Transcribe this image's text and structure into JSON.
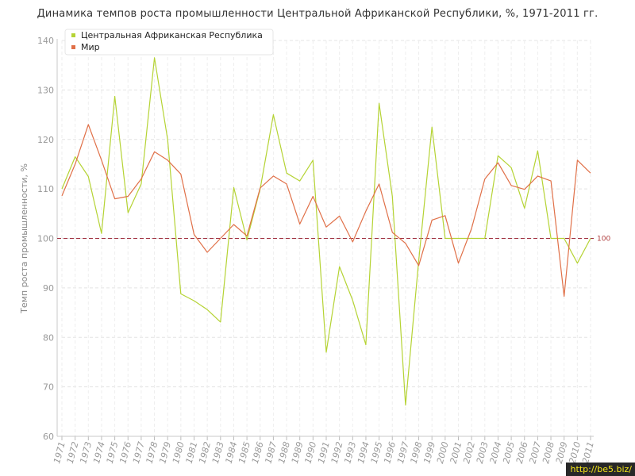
{
  "chart_data": {
    "type": "line",
    "title": "Динамика темпов роста промышленности Центральной Африканской Республики, %, 1971-2011 гг.",
    "ylabel": "Темп роста промышленности, %",
    "xlabel": "",
    "ylim": [
      60,
      140
    ],
    "yticks": [
      60,
      70,
      80,
      90,
      100,
      110,
      120,
      130,
      140
    ],
    "grid": true,
    "legend": "top-left",
    "x": [
      1971,
      1972,
      1973,
      1974,
      1975,
      1976,
      1977,
      1978,
      1979,
      1980,
      1981,
      1982,
      1983,
      1984,
      1985,
      1986,
      1987,
      1988,
      1989,
      1990,
      1991,
      1992,
      1993,
      1994,
      1995,
      1996,
      1997,
      1998,
      1999,
      2000,
      2001,
      2002,
      2003,
      2004,
      2005,
      2006,
      2007,
      2008,
      2009,
      2010,
      2011
    ],
    "series": [
      {
        "name": "Центральная Африканская Республика",
        "color": "#b5d334",
        "values": [
          110.0,
          116.5,
          112.5,
          101.0,
          128.7,
          105.2,
          111.0,
          136.5,
          120.0,
          88.8,
          87.4,
          85.6,
          83.1,
          110.3,
          99.7,
          110.0,
          125.0,
          113.2,
          111.6,
          115.8,
          77.0,
          94.3,
          87.5,
          78.5,
          127.3,
          108.5,
          66.3,
          95.5,
          122.5,
          100.0,
          100.0,
          100.0,
          100.0,
          116.7,
          114.3,
          106.1,
          117.7,
          100.0,
          100.0,
          95.0,
          100.0
        ]
      },
      {
        "name": "Мир",
        "color": "#e07048",
        "values": [
          108.6,
          115.0,
          123.0,
          115.8,
          108.0,
          108.5,
          112.0,
          117.5,
          115.8,
          113.0,
          100.8,
          97.2,
          100.0,
          102.8,
          100.5,
          110.2,
          112.6,
          111.0,
          102.9,
          108.5,
          102.3,
          104.5,
          99.3,
          105.5,
          111.0,
          101.2,
          99.0,
          94.5,
          103.7,
          104.6,
          95.0,
          102.0,
          112.0,
          115.3,
          110.7,
          109.9,
          112.6,
          111.6,
          88.3,
          115.8,
          113.2
        ]
      }
    ],
    "reference_line": {
      "value": 100,
      "label": "100",
      "color": "#a03040"
    }
  },
  "watermark": "http://be5.biz/"
}
